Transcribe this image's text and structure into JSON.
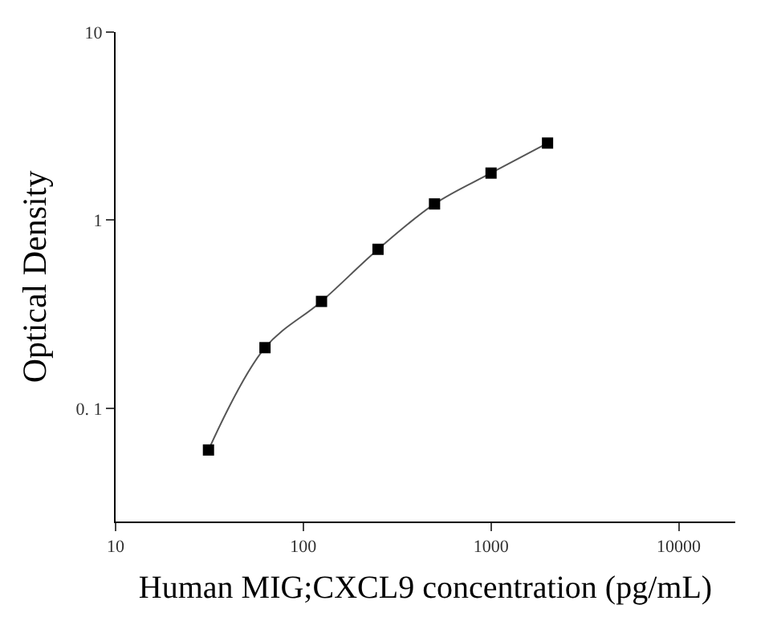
{
  "chart_data": {
    "type": "scatter",
    "xlabel": "Human MIG;CXCL9 concentration (pg/mL)",
    "ylabel": "Optical Density",
    "log": "xy",
    "xlim": [
      10,
      20000
    ],
    "xticks": [
      10,
      100,
      1000,
      10000
    ],
    "ylim": [
      0.025,
      10
    ],
    "yticks": [
      {
        "value": 0.1,
        "label": "0. 1"
      },
      1,
      10
    ],
    "grid": false,
    "series": [
      {
        "color": "#000000",
        "marker": "square",
        "x": [
          31.25,
          62.5,
          125,
          250,
          500,
          1000,
          2000
        ],
        "values": [
          0.06,
          0.21,
          0.37,
          0.7,
          1.22,
          1.78,
          2.57
        ]
      },
      {
        "type": "line",
        "color": "#555555",
        "line_style": "solid",
        "x": [
          31.25,
          62.5,
          125,
          250,
          500,
          1000,
          2000
        ],
        "values": [
          0.06,
          0.21,
          0.37,
          0.7,
          1.22,
          1.78,
          2.57
        ]
      }
    ]
  }
}
